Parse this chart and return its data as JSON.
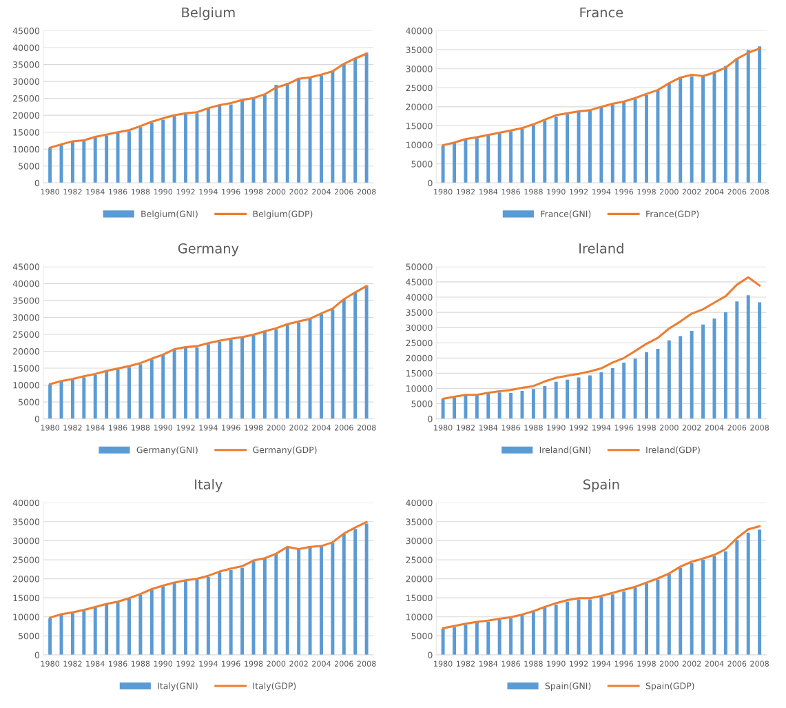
{
  "chart_data": [
    {
      "type": "bar",
      "title": "Belgium",
      "categories": [
        "1980",
        null,
        "1982",
        null,
        "1984",
        null,
        "1986",
        null,
        "1988",
        null,
        "1990",
        null,
        "1992",
        null,
        "1994",
        null,
        "1996",
        null,
        "1998",
        null,
        "2000",
        null,
        "2002",
        null,
        "2004",
        null,
        "2006",
        null,
        "2008"
      ],
      "ylim": [
        0,
        45000
      ],
      "yticks": [
        0,
        5000,
        10000,
        15000,
        20000,
        25000,
        30000,
        35000,
        40000,
        45000
      ],
      "grid": "y",
      "legend": "bottom",
      "series": [
        {
          "name": "Belgium(GNI)",
          "color": "#5b9bd5",
          "values": [
            10300,
            11200,
            12100,
            12400,
            13500,
            14000,
            14800,
            15300,
            16500,
            17800,
            18700,
            19800,
            20400,
            20600,
            22000,
            23000,
            23200,
            24700,
            25000,
            26000,
            29000,
            29600,
            31000,
            31200,
            31800,
            33200,
            35100,
            36700,
            38500
          ]
        },
        {
          "name": "Belgium(GDP)",
          "type": "line",
          "color": "#ed7d31",
          "values": [
            10400,
            11400,
            12300,
            12600,
            13600,
            14300,
            15000,
            15600,
            16800,
            18100,
            19100,
            20000,
            20600,
            20900,
            22100,
            23000,
            23600,
            24500,
            25100,
            26200,
            28200,
            29200,
            30800,
            31200,
            32000,
            33000,
            35200,
            36800,
            38200
          ]
        }
      ]
    },
    {
      "type": "bar",
      "title": "France",
      "categories": [
        "1980",
        null,
        "1982",
        null,
        "1984",
        null,
        "1986",
        null,
        "1988",
        null,
        "1990",
        null,
        "1992",
        null,
        "1994",
        null,
        "1996",
        null,
        "1998",
        null,
        "2000",
        null,
        "2002",
        null,
        "2004",
        null,
        "2006",
        null,
        "2008"
      ],
      "ylim": [
        0,
        40000
      ],
      "yticks": [
        0,
        5000,
        10000,
        15000,
        20000,
        25000,
        30000,
        35000,
        40000
      ],
      "grid": "y",
      "legend": "bottom",
      "series": [
        {
          "name": "France(GNI)",
          "color": "#5b9bd5",
          "values": [
            9700,
            10400,
            11300,
            11800,
            12400,
            13000,
            13600,
            14200,
            15200,
            16400,
            17400,
            18100,
            18700,
            19000,
            19800,
            20600,
            21300,
            22000,
            23100,
            24500,
            26200,
            27500,
            28000,
            28000,
            29300,
            30700,
            32800,
            34900,
            35900
          ]
        },
        {
          "name": "France(GDP)",
          "type": "line",
          "color": "#ed7d31",
          "values": [
            9900,
            10600,
            11500,
            12000,
            12600,
            13200,
            13800,
            14400,
            15400,
            16600,
            17800,
            18300,
            18800,
            19100,
            20000,
            20800,
            21400,
            22300,
            23400,
            24400,
            26200,
            27700,
            28400,
            28100,
            29000,
            30300,
            32600,
            34200,
            35300
          ]
        }
      ]
    },
    {
      "type": "bar",
      "title": "Germany",
      "categories": [
        "1980",
        null,
        "1982",
        null,
        "1984",
        null,
        "1986",
        null,
        "1988",
        null,
        "1990",
        null,
        "1992",
        null,
        "1994",
        null,
        "1996",
        null,
        "1998",
        null,
        "2000",
        null,
        "2002",
        null,
        "2004",
        null,
        "2006",
        null,
        "2008"
      ],
      "ylim": [
        0,
        45000
      ],
      "yticks": [
        0,
        5000,
        10000,
        15000,
        20000,
        25000,
        30000,
        35000,
        40000,
        45000
      ],
      "grid": "y",
      "legend": "bottom",
      "series": [
        {
          "name": "Germany(GNI)",
          "color": "#5b9bd5",
          "values": [
            10200,
            11000,
            11600,
            12300,
            13000,
            14000,
            14700,
            15300,
            16200,
            17600,
            18900,
            20500,
            20900,
            21100,
            22100,
            22800,
            23500,
            24000,
            24800,
            25800,
            26500,
            27800,
            28500,
            29500,
            31000,
            32400,
            35400,
            37600,
            39400
          ]
        },
        {
          "name": "Germany(GDP)",
          "type": "line",
          "color": "#ed7d31",
          "values": [
            10300,
            11200,
            11800,
            12600,
            13300,
            14200,
            14900,
            15600,
            16500,
            17800,
            19000,
            20600,
            21200,
            21500,
            22400,
            23100,
            23700,
            24200,
            24900,
            25900,
            26800,
            28000,
            28800,
            29600,
            31200,
            32600,
            35400,
            37400,
            39300
          ]
        }
      ]
    },
    {
      "type": "bar",
      "title": "Ireland",
      "categories": [
        "1980",
        null,
        "1982",
        null,
        "1984",
        null,
        "1986",
        null,
        "1988",
        null,
        "1990",
        null,
        "1992",
        null,
        "1994",
        null,
        "1996",
        null,
        "1998",
        null,
        "2000",
        null,
        "2002",
        null,
        "2004",
        null,
        "2006",
        null,
        "2008"
      ],
      "ylim": [
        0,
        50000
      ],
      "yticks": [
        0,
        5000,
        10000,
        15000,
        20000,
        25000,
        30000,
        35000,
        40000,
        45000,
        50000
      ],
      "grid": "y",
      "legend": "bottom",
      "series": [
        {
          "name": "Ireland(GNI)",
          "color": "#5b9bd5",
          "values": [
            6500,
            7000,
            7800,
            7700,
            8400,
            8700,
            8500,
            9200,
            9800,
            10800,
            12200,
            12900,
            13600,
            14300,
            15300,
            16700,
            18500,
            19800,
            21900,
            23000,
            25800,
            27200,
            28900,
            31000,
            33000,
            35000,
            38600,
            40600,
            38300
          ]
        },
        {
          "name": "Ireland(GDP)",
          "type": "line",
          "color": "#ed7d31",
          "values": [
            6600,
            7300,
            7900,
            7900,
            8600,
            9100,
            9500,
            10200,
            10800,
            12300,
            13500,
            14200,
            14800,
            15600,
            16600,
            18500,
            20000,
            22300,
            24700,
            26600,
            29700,
            32000,
            34600,
            36000,
            38200,
            40300,
            44100,
            46500,
            43800
          ]
        }
      ]
    },
    {
      "type": "bar",
      "title": "Italy",
      "categories": [
        "1980",
        null,
        "1982",
        null,
        "1984",
        null,
        "1986",
        null,
        "1988",
        null,
        "1990",
        null,
        "1992",
        null,
        "1994",
        null,
        "1996",
        null,
        "1998",
        null,
        "2000",
        null,
        "2002",
        null,
        "2004",
        null,
        "2006",
        null,
        "2008"
      ],
      "ylim": [
        0,
        40000
      ],
      "yticks": [
        0,
        5000,
        10000,
        15000,
        20000,
        25000,
        30000,
        35000,
        40000
      ],
      "grid": "y",
      "legend": "bottom",
      "series": [
        {
          "name": "Italy(GNI)",
          "color": "#5b9bd5",
          "values": [
            9600,
            10500,
            11000,
            11600,
            12500,
            13200,
            13900,
            14700,
            15800,
            17200,
            18000,
            18900,
            19500,
            19800,
            20500,
            21700,
            22300,
            22900,
            24600,
            25200,
            26500,
            28200,
            27800,
            28300,
            28500,
            29400,
            31700,
            33100,
            34500
          ]
        },
        {
          "name": "Italy(GDP)",
          "type": "line",
          "color": "#ed7d31",
          "values": [
            9800,
            10700,
            11200,
            11800,
            12600,
            13400,
            14000,
            14900,
            16000,
            17300,
            18200,
            19000,
            19600,
            20000,
            20800,
            21900,
            22700,
            23300,
            24800,
            25400,
            26600,
            28400,
            27800,
            28400,
            28600,
            29600,
            31900,
            33500,
            34900
          ]
        }
      ]
    },
    {
      "type": "bar",
      "title": "Spain",
      "categories": [
        "1980",
        null,
        "1982",
        null,
        "1984",
        null,
        "1986",
        null,
        "1988",
        null,
        "1990",
        null,
        "1992",
        null,
        "1994",
        null,
        "1996",
        null,
        "1998",
        null,
        "2000",
        null,
        "2002",
        null,
        "2004",
        null,
        "2006",
        null,
        "2008"
      ],
      "ylim": [
        0,
        40000
      ],
      "yticks": [
        0,
        5000,
        10000,
        15000,
        20000,
        25000,
        30000,
        35000,
        40000
      ],
      "grid": "y",
      "legend": "bottom",
      "series": [
        {
          "name": "Spain(GNI)",
          "color": "#5b9bd5",
          "values": [
            6900,
            7300,
            7900,
            8500,
            8700,
            9300,
            9600,
            10500,
            11300,
            12500,
            13200,
            14000,
            14600,
            14600,
            15200,
            15900,
            16700,
            17700,
            18800,
            19800,
            21200,
            22900,
            24100,
            25000,
            26000,
            27200,
            30200,
            32100,
            32900
          ]
        },
        {
          "name": "Spain(GDP)",
          "type": "line",
          "color": "#ed7d31",
          "values": [
            7000,
            7600,
            8200,
            8700,
            9000,
            9500,
            9900,
            10600,
            11500,
            12600,
            13600,
            14400,
            14900,
            14900,
            15500,
            16300,
            17100,
            17900,
            19000,
            20100,
            21400,
            23200,
            24500,
            25300,
            26300,
            27800,
            30700,
            33000,
            33800
          ]
        }
      ]
    }
  ]
}
